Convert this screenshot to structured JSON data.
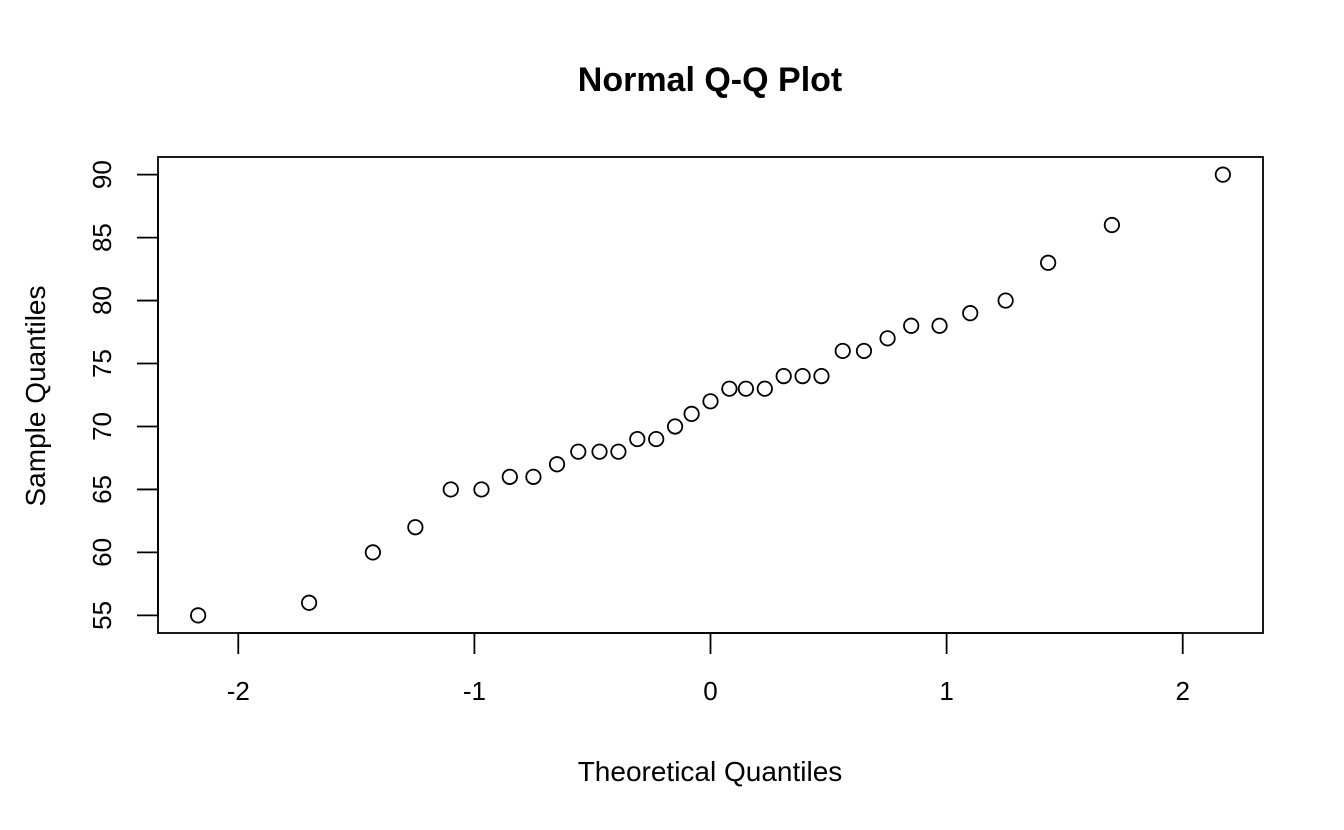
{
  "chart_data": {
    "type": "scatter",
    "title": "Normal Q-Q Plot",
    "xlabel": "Theoretical Quantiles",
    "ylabel": "Sample Quantiles",
    "xlim": [
      -2.34,
      2.34
    ],
    "ylim": [
      53.6,
      91.4
    ],
    "x_ticks": [
      -2,
      -1,
      0,
      1,
      2
    ],
    "x_tick_labels": [
      "-2",
      "-1",
      "0",
      "1",
      "2"
    ],
    "y_ticks": [
      55,
      60,
      65,
      70,
      75,
      80,
      85,
      90
    ],
    "y_tick_labels": [
      "55",
      "60",
      "65",
      "70",
      "75",
      "80",
      "85",
      "90"
    ],
    "grid": false,
    "marker": "open-circle",
    "colors": {
      "point_stroke": "#000000",
      "point_fill": "#ffffff",
      "axis": "#000000"
    },
    "x": [
      -2.17,
      -1.7,
      -1.43,
      -1.25,
      -1.1,
      -0.97,
      -0.85,
      -0.75,
      -0.65,
      -0.56,
      -0.47,
      -0.39,
      -0.31,
      -0.23,
      -0.15,
      -0.08,
      0.0,
      0.08,
      0.15,
      0.23,
      0.31,
      0.39,
      0.47,
      0.56,
      0.65,
      0.75,
      0.85,
      0.97,
      1.1,
      1.25,
      1.43,
      1.7,
      2.17
    ],
    "y": [
      55,
      56,
      60,
      62,
      65,
      65,
      66,
      66,
      67,
      68,
      68,
      68,
      69,
      69,
      70,
      71,
      72,
      73,
      73,
      73,
      74,
      74,
      74,
      76,
      76,
      77,
      78,
      78,
      79,
      80,
      83,
      86,
      90
    ]
  }
}
